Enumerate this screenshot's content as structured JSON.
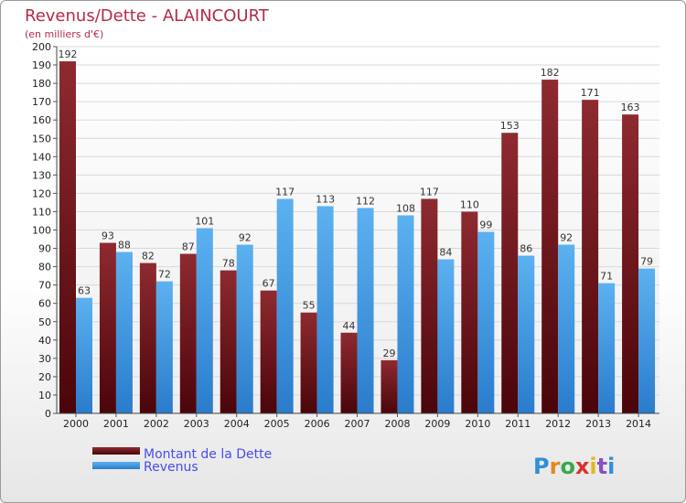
{
  "chart_data": {
    "type": "bar",
    "title": "Revenus/Dette - ALAINCOURT",
    "subtitle": "(en milliers d'€)",
    "categories": [
      "2000",
      "2001",
      "2002",
      "2003",
      "2004",
      "2005",
      "2006",
      "2007",
      "2008",
      "2009",
      "2010",
      "2011",
      "2012",
      "2013",
      "2014"
    ],
    "series": [
      {
        "name": "Montant de la Dette",
        "color": "#7a1a22",
        "values": [
          192,
          93,
          82,
          87,
          78,
          67,
          55,
          44,
          29,
          117,
          110,
          153,
          182,
          171,
          163
        ]
      },
      {
        "name": "Revenus",
        "color": "#3d9be6",
        "values": [
          63,
          88,
          72,
          101,
          92,
          117,
          113,
          112,
          108,
          84,
          99,
          86,
          92,
          71,
          79
        ]
      }
    ],
    "ylim": [
      0,
      200
    ],
    "ytick_step": 10,
    "grid": true,
    "legend_position": "bottom-left"
  },
  "logo_text": "Proxiti"
}
